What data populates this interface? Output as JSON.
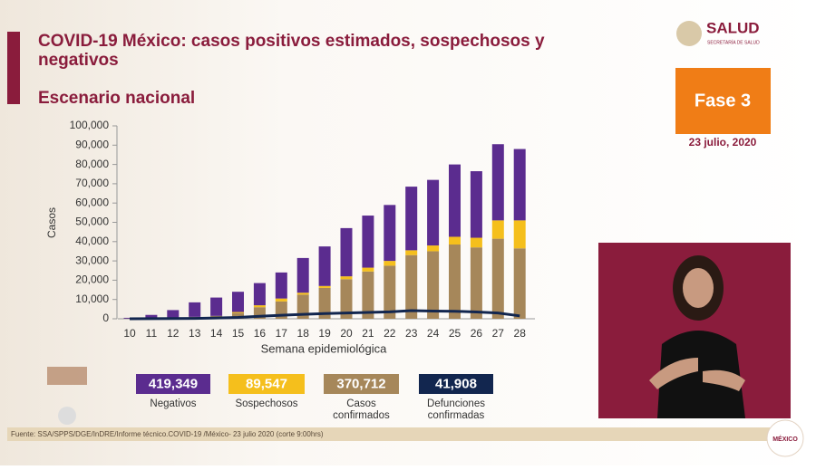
{
  "chart_data": {
    "type": "bar",
    "stacked": true,
    "title": "COVID-19 México: casos positivos estimados, sospechosos y negativos",
    "subtitle": "Escenario nacional",
    "xlabel": "Semana epidemiológica",
    "ylabel": "Casos",
    "categories": [
      "10",
      "11",
      "12",
      "13",
      "14",
      "15",
      "16",
      "17",
      "18",
      "19",
      "20",
      "21",
      "22",
      "23",
      "24",
      "25",
      "26",
      "27",
      "28"
    ],
    "ylim": [
      0,
      100000
    ],
    "yticks": [
      0,
      {
        "value": 10000,
        "label": "10,000"
      },
      {
        "value": 20000,
        "label": "20,000"
      },
      {
        "value": 30000,
        "label": "30,000"
      },
      {
        "value": 40000,
        "label": "40,000"
      },
      {
        "value": 50000,
        "label": "50,000"
      },
      {
        "value": 60000,
        "label": "60,000"
      },
      {
        "value": 70000,
        "label": "70,000"
      },
      {
        "value": 80000,
        "label": "80,000"
      },
      {
        "value": 90000,
        "label": "90,000"
      },
      {
        "value": 100000,
        "label": "100,000"
      }
    ],
    "series": [
      {
        "name": "Casos confirmados",
        "color": "#a6875a",
        "type": "bar",
        "total": 370712,
        "total_label": "370,712",
        "values": [
          100,
          300,
          500,
          1000,
          1500,
          3000,
          6000,
          9000,
          12500,
          16000,
          20500,
          24500,
          27500,
          33000,
          35000,
          38500,
          37000,
          41500,
          36500
        ]
      },
      {
        "name": "Sospechosos",
        "color": "#f5bf1c",
        "type": "bar",
        "total": 89547,
        "total_label": "89,547",
        "values": [
          0,
          0,
          0,
          0,
          0,
          500,
          1000,
          1500,
          1000,
          1000,
          1500,
          2000,
          2500,
          2500,
          3000,
          4000,
          5000,
          9500,
          14500
        ]
      },
      {
        "name": "Negativos",
        "color": "#5b2c8f",
        "type": "bar",
        "total": 419349,
        "total_label": "419,349",
        "values": [
          400,
          1700,
          4000,
          7500,
          9500,
          10500,
          11500,
          13500,
          18000,
          20500,
          25000,
          27000,
          29000,
          33000,
          34000,
          37500,
          34500,
          39500,
          37000
        ]
      },
      {
        "name": "Defunciones confirmadas",
        "color": "#12264f",
        "type": "line",
        "total": 41908,
        "total_label": "41,908",
        "values": [
          0,
          50,
          100,
          200,
          400,
          700,
          1300,
          1800,
          2300,
          2700,
          3000,
          3300,
          3600,
          4200,
          4000,
          3900,
          3500,
          3000,
          1500
        ]
      }
    ],
    "legend_order": [
      2,
      1,
      0,
      3
    ]
  },
  "header": {
    "logo": "SALUD",
    "logo_sub": "SECRETARÍA DE SALUD",
    "phase": "Fase 3",
    "date": "23 julio, 2020"
  },
  "footer": {
    "source": "Fuente: SSA/SPPS/DGE/InDRE/Informe técnico.COVID-19 /México- 23 julio 2020 (corte 9:00hrs)",
    "badge": "MÉXICO"
  }
}
